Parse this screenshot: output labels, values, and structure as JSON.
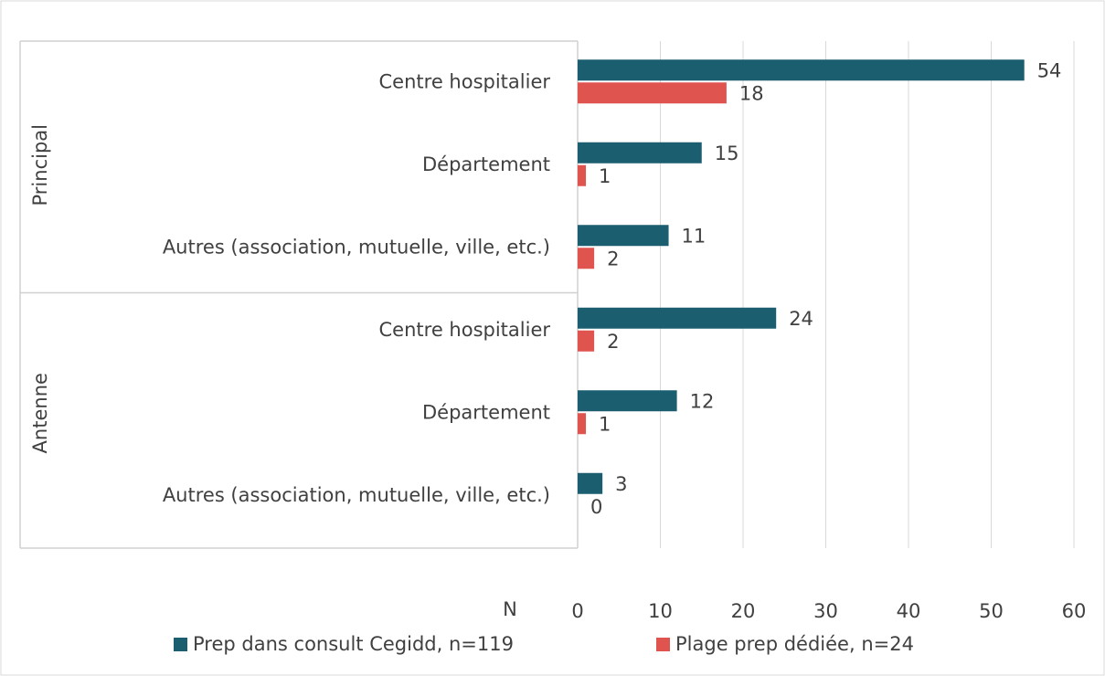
{
  "chart_data": {
    "type": "bar",
    "orientation": "horizontal",
    "groups": [
      {
        "name": "Principal",
        "categories": [
          "Centre hospitalier",
          "Département",
          "Autres (association, mutuelle, ville, etc.)"
        ]
      },
      {
        "name": "Antenne",
        "categories": [
          "Centre hospitalier",
          "Département",
          "Autres (association, mutuelle, ville, etc.)"
        ]
      }
    ],
    "series": [
      {
        "name": "Prep dans consult Cegidd, n=119",
        "color": "#1b5e70",
        "values": [
          54,
          15,
          11,
          24,
          12,
          3
        ]
      },
      {
        "name": "Plage prep dédiée, n=24",
        "color": "#e05450",
        "values": [
          18,
          1,
          2,
          2,
          1,
          0
        ]
      }
    ],
    "xlabel": "N",
    "xlim": [
      0,
      60
    ],
    "xticks": [
      0,
      10,
      20,
      30,
      40,
      50,
      60
    ],
    "grid": true,
    "legend": "bottom"
  }
}
